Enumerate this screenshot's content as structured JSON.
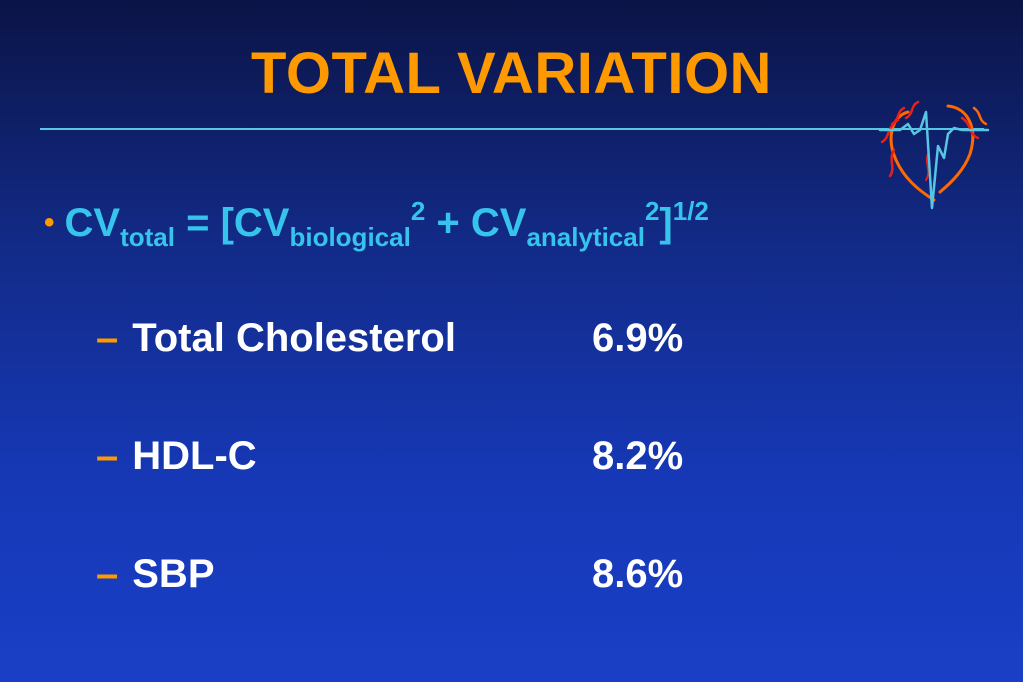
{
  "slide": {
    "title": "TOTAL VARIATION",
    "logo": {
      "icon": "ecg-heart-logo-icon",
      "colors": {
        "outline": "#ff6a00",
        "flame": "#e8201a",
        "trace": "#57c6e4"
      }
    },
    "formula": {
      "bullet": "•",
      "cv1": "CV",
      "sub_total": "total",
      "eq": " = [CV",
      "sub_biological": "biological",
      "sup1": "2",
      "plus": " + CV",
      "sub_analytical": "analytical",
      "sup2": "2",
      "close": "]",
      "sup3": "1/2"
    },
    "items": [
      {
        "dash": "–",
        "label": "Total Cholesterol",
        "value": "6.9%"
      },
      {
        "dash": "–",
        "label": "HDL-C",
        "value": "8.2%"
      },
      {
        "dash": "–",
        "label": "SBP",
        "value": "8.6%"
      }
    ],
    "colors": {
      "title": "#ff9900",
      "formula": "#37c4ec",
      "rule": "#57c6e4",
      "bullet": "#ff9900",
      "text": "#ffffff"
    }
  }
}
